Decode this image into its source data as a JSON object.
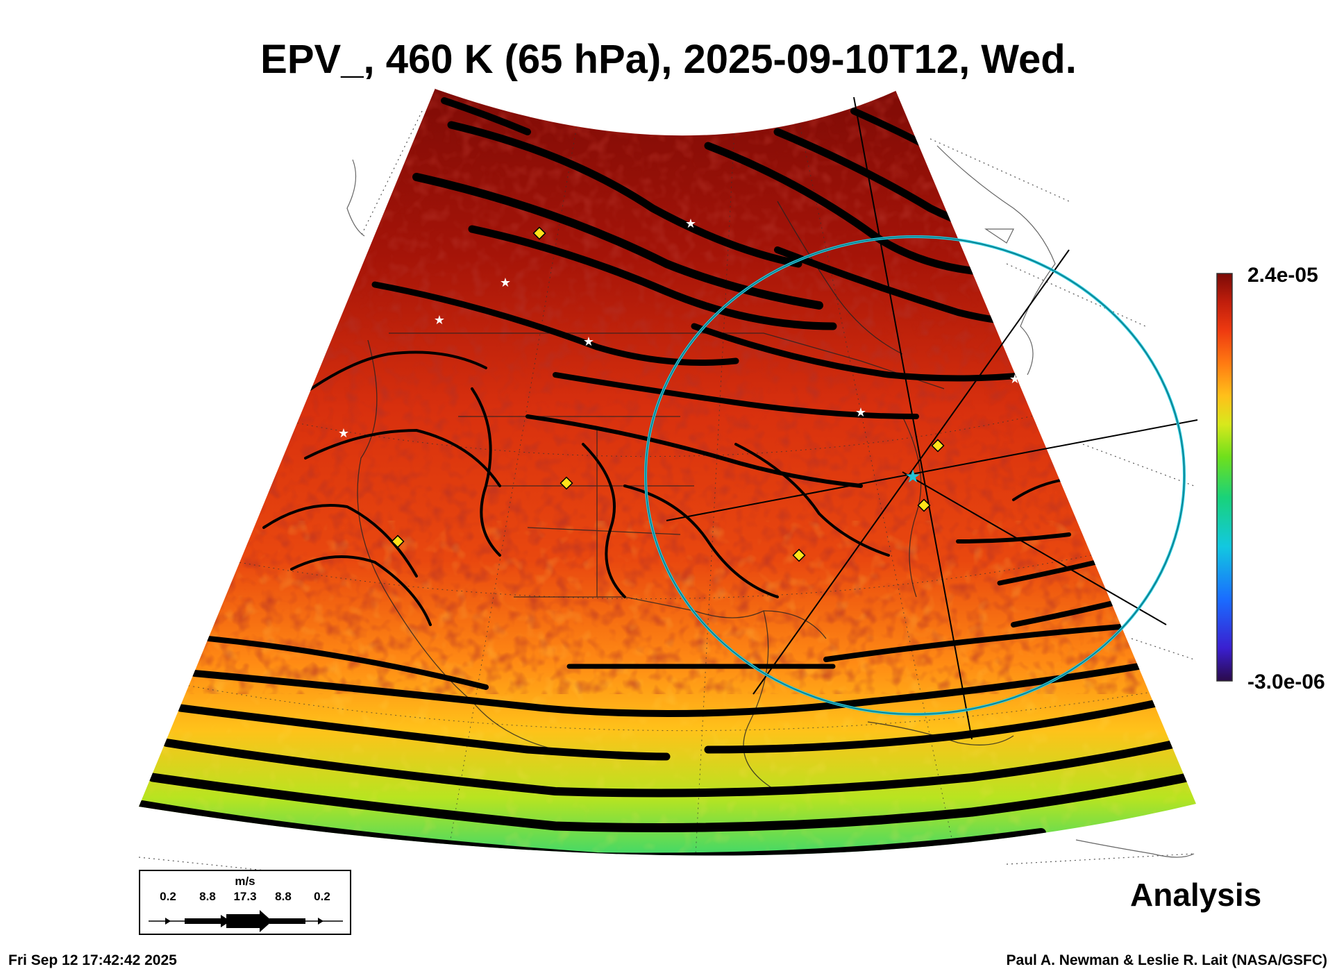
{
  "title": "EPV_, 460 K (65 hPa), 2025-09-10T12, Wed.",
  "colorbar": {
    "max_label": "2.4e-05",
    "min_label": "-3.0e-06",
    "colors": [
      "#2a0a4a",
      "#3a1fd0",
      "#1a6cff",
      "#12c8e0",
      "#19d27a",
      "#6fe01c",
      "#d8e81c",
      "#ffc01a",
      "#ff7a12",
      "#ee3a10",
      "#c01e0c",
      "#7a0a06"
    ]
  },
  "wind_legend": {
    "units": "m/s",
    "values": [
      "0.2",
      "8.8",
      "17.3",
      "8.8",
      "0.2"
    ]
  },
  "label": "Analysis",
  "footer_left": "Fri Sep 12 17:42:42 2025",
  "footer_right": "Paul A. Newman & Leslie R. Lait (NASA/GSFC)",
  "colors": {
    "circle": "#22c4d8",
    "station_star": "#ffffff",
    "station_diamond": "#ffe31a"
  }
}
